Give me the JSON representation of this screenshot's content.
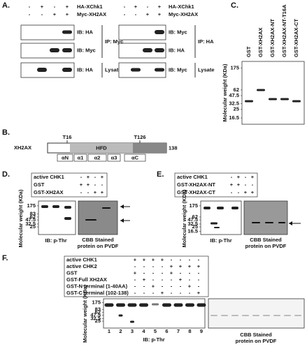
{
  "panel_a": {
    "label": "A.",
    "left": {
      "rows": [
        {
          "name": "HA-XChk1",
          "signs": [
            "-",
            "+",
            "-",
            "+"
          ]
        },
        {
          "name": "Myc-XH2AX",
          "signs": [
            "-",
            "-",
            "+",
            "+"
          ]
        }
      ],
      "blots": [
        "IB: HA",
        "IB: Myc",
        "IB: HA"
      ],
      "ip": "IP: Myc",
      "lysate": "Lysate"
    },
    "right": {
      "rows": [
        {
          "name": "HA-XChk1",
          "signs": [
            "-",
            "+",
            "-",
            "+"
          ]
        },
        {
          "name": "Myc-XH2AX",
          "signs": [
            "-",
            "-",
            "+",
            "+"
          ]
        }
      ],
      "blots": [
        "IB: Myc",
        "IB: HA",
        "IB: Myc"
      ],
      "ip": "IP: HA",
      "lysate": "Lysate"
    }
  },
  "panel_b": {
    "label": "B.",
    "protein": "XH2AX",
    "sites": [
      "T16",
      "T126"
    ],
    "domain": "HFD",
    "length": "138",
    "helices": [
      "αN",
      "α1",
      "α2",
      "α3",
      "αC"
    ]
  },
  "panel_c": {
    "label": "C.",
    "lanes": [
      "GST",
      "GST-XH2AX",
      "GST-XH2AX-NT",
      "GST-XH2AX-NT-T16A",
      "GST-XH2AX-CT"
    ],
    "y_label": "Molecular weight (KDa)",
    "mw": [
      175,
      62,
      47.5,
      32.5,
      25,
      16.5
    ]
  },
  "panel_d": {
    "label": "D.",
    "rows": [
      {
        "name": "active CHK1",
        "signs": [
          "-",
          "+",
          "-",
          "+"
        ]
      },
      {
        "name": "GST",
        "signs": [
          "+",
          "+",
          "-",
          "-"
        ]
      },
      {
        "name": "GST-XH2AX",
        "signs": [
          "-",
          "-",
          "+",
          "+"
        ]
      }
    ],
    "y_label": "Molecular weight (KDa)",
    "mw": [
      175,
      83,
      62,
      47.5,
      32.5,
      25
    ],
    "blot_caption": "IB: p-Thr",
    "stain_caption": [
      "CBB Stained",
      "protein on PVDF"
    ]
  },
  "panel_e": {
    "label": "E.",
    "rows": [
      {
        "name": "active CHK1",
        "signs": [
          "-",
          "+",
          "-",
          "+"
        ]
      },
      {
        "name": "GST-XH2AX-NT",
        "signs": [
          "+",
          "+",
          "-",
          "-"
        ]
      },
      {
        "name": "GST-XH2AX-CT",
        "signs": [
          "-",
          "-",
          "+",
          "+"
        ]
      }
    ],
    "y_label": "Molecular weight (KDa)",
    "mw": [
      175,
      62,
      47.5,
      32.5,
      25,
      16.5
    ],
    "blot_caption": "IB: p-Thr",
    "stain_caption": [
      "CBB Stained",
      "protein on PVDF"
    ]
  },
  "panel_f": {
    "label": "F.",
    "rows": [
      {
        "name": "active CHK1",
        "signs": [
          "+",
          "+",
          "+",
          "+",
          "-",
          "-",
          "-",
          "-"
        ]
      },
      {
        "name": "active CHK2",
        "signs": [
          "-",
          "-",
          "-",
          "-",
          "+",
          "+",
          "+",
          "+"
        ]
      },
      {
        "name": "GST",
        "signs": [
          "+",
          "-",
          "-",
          "-",
          "+",
          "-",
          "-",
          "-"
        ]
      },
      {
        "name": "GST-Full XH2AX",
        "signs": [
          "-",
          "+",
          "-",
          "-",
          "-",
          "+",
          "-",
          "-"
        ]
      },
      {
        "name": "GST-N terminal (1-40AA)",
        "signs": [
          "-",
          "-",
          "+",
          "-",
          "-",
          "-",
          "+",
          "-"
        ]
      },
      {
        "name": "GST-C terminal (102-138)",
        "signs": [
          "-",
          "-",
          "-",
          "+",
          "-",
          "-",
          "-",
          "+"
        ]
      }
    ],
    "y_label": "Molecular weight (KDa)",
    "mw": [
      175,
      83,
      62,
      47.5,
      32.5,
      25
    ],
    "lanes": [
      1,
      2,
      3,
      4,
      5,
      6,
      7,
      8,
      9
    ],
    "blot_caption": "IB: p-Thr",
    "stain_caption": [
      "CBB Stained",
      "protein on PVDF"
    ]
  }
}
